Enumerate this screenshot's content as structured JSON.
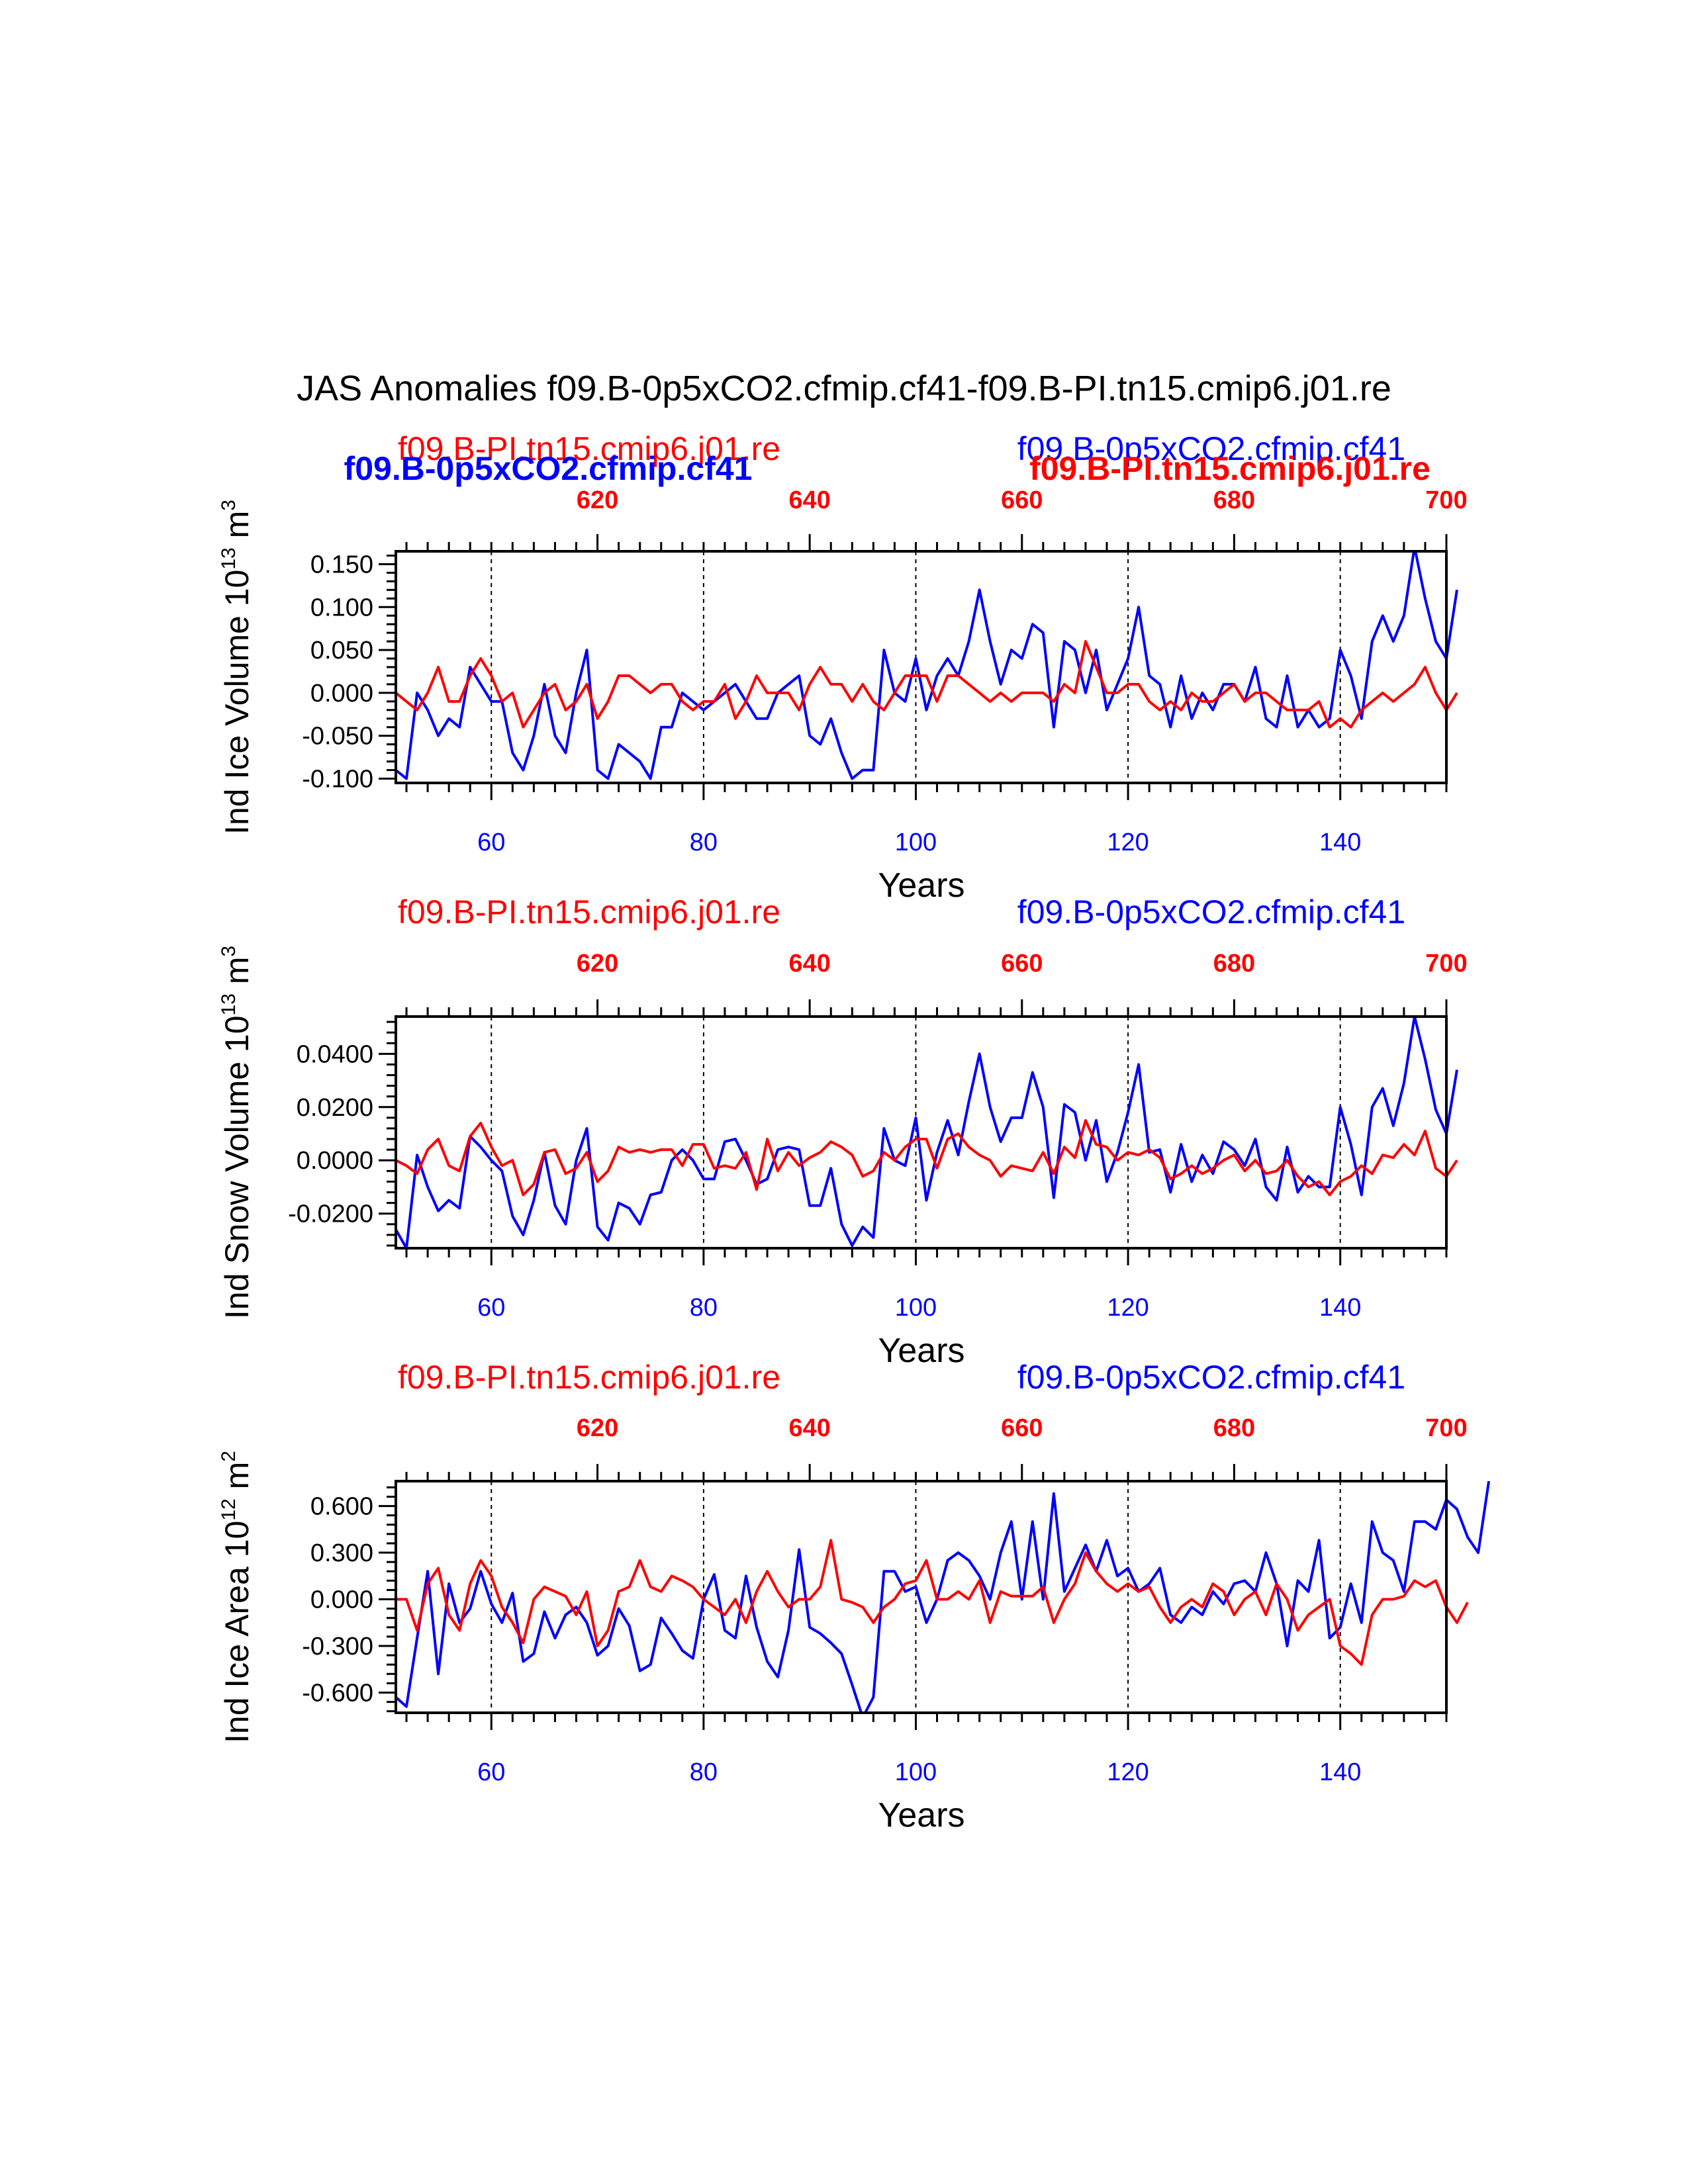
{
  "title": "JAS Anomalies f09.B-0p5xCO2.cfmip.cf41-f09.B-PI.tn15.cmip6.j01.re",
  "top_overlay": {
    "blue_bold": "f09.B-0p5xCO2.cfmip.cf41",
    "red_bold": "f09.B-PI.tn15.cmip6.j01.re"
  },
  "colors": {
    "case1": "#0000ff",
    "case2": "#ff0000",
    "axis": "#000000"
  },
  "chart_data": [
    {
      "type": "line",
      "ylabel": "Ind Ice Volume 10",
      "ylabel_sup": "13",
      "ylabel_unit": " m",
      "ylabel_unit_sup": "3",
      "xlabel": "Years",
      "label_left": "f09.B-PI.tn15.cmip6.j01.re",
      "label_right": "f09.B-0p5xCO2.cfmip.cf41",
      "xlim": [
        51,
        150
      ],
      "top_xlim": [
        601,
        700
      ],
      "ylim": [
        -0.105,
        0.165
      ],
      "yticks": [
        -0.1,
        -0.05,
        0.0,
        0.05,
        0.1,
        0.15
      ],
      "ytick_labels": [
        "-0.100",
        "-0.050",
        "0.000",
        "0.050",
        "0.100",
        "0.150"
      ],
      "xticks": [
        60,
        80,
        100,
        120,
        140
      ],
      "xtick_labels": [
        "60",
        "80",
        "100",
        "120",
        "140"
      ],
      "top_xticks": [
        620,
        640,
        660,
        680,
        700
      ],
      "top_xtick_labels": [
        "620",
        "640",
        "660",
        "680",
        "700"
      ],
      "series": [
        {
          "name": "f09.B-0p5xCO2.cfmip.cf41",
          "color": "#0000ff",
          "values": [
            -0.09,
            -0.1,
            0.0,
            -0.02,
            -0.05,
            -0.03,
            -0.04,
            0.03,
            0.01,
            -0.01,
            -0.01,
            -0.07,
            -0.09,
            -0.05,
            0.01,
            -0.05,
            -0.07,
            0.0,
            0.05,
            -0.09,
            -0.1,
            -0.06,
            -0.07,
            -0.08,
            -0.1,
            -0.04,
            -0.04,
            0.0,
            -0.01,
            -0.02,
            -0.01,
            0.0,
            0.01,
            -0.01,
            -0.03,
            -0.03,
            0.0,
            0.01,
            0.02,
            -0.05,
            -0.06,
            -0.03,
            -0.07,
            -0.1,
            -0.09,
            -0.09,
            0.05,
            0.0,
            -0.01,
            0.04,
            -0.02,
            0.02,
            0.04,
            0.02,
            0.06,
            0.12,
            0.06,
            0.01,
            0.05,
            0.04,
            0.08,
            0.07,
            -0.04,
            0.06,
            0.05,
            0.0,
            0.05,
            -0.02,
            0.01,
            0.04,
            0.1,
            0.02,
            0.01,
            -0.04,
            0.02,
            -0.03,
            0.0,
            -0.02,
            0.01,
            0.01,
            -0.01,
            0.03,
            -0.03,
            -0.04,
            0.02,
            -0.04,
            -0.02,
            -0.04,
            -0.03,
            0.05,
            0.02,
            -0.03,
            0.06,
            0.09,
            0.06,
            0.09,
            0.17,
            0.11,
            0.06,
            0.04,
            0.12
          ]
        },
        {
          "name": "f09.B-PI.tn15.cmip6.j01.re",
          "color": "#ff0000",
          "values": [
            0.0,
            -0.01,
            -0.02,
            0.0,
            0.03,
            -0.01,
            -0.01,
            0.02,
            0.04,
            0.02,
            -0.01,
            0.0,
            -0.04,
            -0.02,
            0.0,
            0.01,
            -0.02,
            -0.01,
            0.01,
            -0.03,
            -0.01,
            0.02,
            0.02,
            0.01,
            0.0,
            0.01,
            0.01,
            -0.01,
            -0.02,
            -0.01,
            -0.01,
            0.01,
            -0.03,
            -0.01,
            0.02,
            0.0,
            0.0,
            0.0,
            -0.02,
            0.01,
            0.03,
            0.01,
            0.01,
            -0.01,
            0.01,
            -0.01,
            -0.02,
            0.0,
            0.02,
            0.02,
            0.02,
            -0.01,
            0.02,
            0.02,
            0.01,
            0.0,
            -0.01,
            0.0,
            -0.01,
            0.0,
            0.0,
            0.0,
            -0.01,
            0.01,
            0.0,
            0.06,
            0.03,
            0.0,
            0.0,
            0.01,
            0.01,
            -0.01,
            -0.02,
            -0.01,
            -0.02,
            0.0,
            -0.01,
            -0.01,
            0.0,
            0.01,
            -0.01,
            0.0,
            0.0,
            -0.01,
            -0.02,
            -0.02,
            -0.02,
            -0.01,
            -0.04,
            -0.03,
            -0.04,
            -0.02,
            -0.01,
            0.0,
            -0.01,
            0.0,
            0.01,
            0.03,
            0.0,
            -0.02,
            0.0
          ]
        }
      ]
    },
    {
      "type": "line",
      "ylabel": "Ind Snow Volume 10",
      "ylabel_sup": "13",
      "ylabel_unit": " m",
      "ylabel_unit_sup": "3",
      "xlabel": "Years",
      "label_left": "f09.B-PI.tn15.cmip6.j01.re",
      "label_right": "f09.B-0p5xCO2.cfmip.cf41",
      "xlim": [
        51,
        150
      ],
      "top_xlim": [
        601,
        700
      ],
      "ylim": [
        -0.033,
        0.054
      ],
      "yticks": [
        -0.02,
        0.0,
        0.02,
        0.04
      ],
      "ytick_labels": [
        "-0.0200",
        "0.0000",
        "0.0200",
        "0.0400"
      ],
      "xticks": [
        60,
        80,
        100,
        120,
        140
      ],
      "xtick_labels": [
        "60",
        "80",
        "100",
        "120",
        "140"
      ],
      "top_xticks": [
        620,
        640,
        660,
        680,
        700
      ],
      "top_xtick_labels": [
        "620",
        "640",
        "660",
        "680",
        "700"
      ],
      "series": [
        {
          "name": "f09.B-0p5xCO2.cfmip.cf41",
          "color": "#0000ff",
          "values": [
            -0.026,
            -0.033,
            0.002,
            -0.01,
            -0.019,
            -0.015,
            -0.018,
            0.009,
            0.005,
            0.0,
            -0.004,
            -0.021,
            -0.028,
            -0.015,
            0.003,
            -0.017,
            -0.024,
            0.0,
            0.012,
            -0.025,
            -0.03,
            -0.016,
            -0.018,
            -0.024,
            -0.013,
            -0.012,
            0.0,
            0.004,
            0.0,
            -0.007,
            -0.007,
            0.007,
            0.008,
            0.0,
            -0.009,
            -0.007,
            0.004,
            0.005,
            0.004,
            -0.017,
            -0.017,
            -0.003,
            -0.024,
            -0.032,
            -0.025,
            -0.029,
            0.012,
            0.0,
            -0.002,
            0.016,
            -0.015,
            0.003,
            0.015,
            0.002,
            0.022,
            0.04,
            0.02,
            0.007,
            0.016,
            0.016,
            0.033,
            0.02,
            -0.014,
            0.021,
            0.018,
            0.0,
            0.015,
            -0.008,
            0.003,
            0.018,
            0.036,
            0.003,
            0.004,
            -0.012,
            0.006,
            -0.008,
            0.002,
            -0.005,
            0.007,
            0.004,
            -0.002,
            0.008,
            -0.01,
            -0.015,
            0.005,
            -0.012,
            -0.006,
            -0.01,
            -0.01,
            0.02,
            0.006,
            -0.013,
            0.02,
            0.027,
            0.013,
            0.029,
            0.054,
            0.038,
            0.019,
            0.01,
            0.034
          ]
        },
        {
          "name": "f09.B-PI.tn15.cmip6.j01.re",
          "color": "#ff0000",
          "values": [
            0.0,
            -0.002,
            -0.005,
            0.004,
            0.008,
            -0.002,
            -0.004,
            0.009,
            0.014,
            0.005,
            -0.002,
            0.0,
            -0.013,
            -0.009,
            0.003,
            0.004,
            -0.005,
            -0.003,
            0.003,
            -0.008,
            -0.004,
            0.005,
            0.003,
            0.004,
            0.003,
            0.004,
            0.004,
            -0.002,
            0.006,
            0.006,
            -0.003,
            -0.002,
            -0.003,
            0.003,
            -0.011,
            0.008,
            -0.004,
            0.003,
            -0.002,
            0.001,
            0.003,
            0.007,
            0.005,
            0.002,
            -0.006,
            -0.004,
            0.003,
            0.0,
            0.005,
            0.008,
            0.008,
            -0.003,
            0.008,
            0.01,
            0.005,
            0.002,
            0.0,
            -0.006,
            -0.002,
            -0.003,
            -0.004,
            0.003,
            -0.005,
            0.005,
            0.001,
            0.015,
            0.006,
            0.005,
            0.0,
            0.003,
            0.002,
            0.004,
            0.001,
            -0.007,
            -0.005,
            -0.002,
            -0.005,
            -0.003,
            0.0,
            0.002,
            -0.004,
            0.0,
            -0.005,
            -0.004,
            0.0,
            -0.006,
            -0.01,
            -0.008,
            -0.013,
            -0.008,
            -0.006,
            -0.002,
            -0.005,
            0.002,
            0.001,
            0.006,
            0.002,
            0.011,
            -0.003,
            -0.006,
            0.0
          ]
        }
      ]
    },
    {
      "type": "line",
      "ylabel": "Ind Ice Area 10",
      "ylabel_sup": "12",
      "ylabel_unit": " m",
      "ylabel_unit_sup": "2",
      "xlabel": "Years",
      "label_left": "f09.B-PI.tn15.cmip6.j01.re",
      "label_right": "f09.B-0p5xCO2.cfmip.cf41",
      "xlim": [
        51,
        150
      ],
      "top_xlim": [
        601,
        700
      ],
      "ylim": [
        -0.73,
        0.76
      ],
      "yticks": [
        -0.6,
        -0.3,
        0.0,
        0.3,
        0.6
      ],
      "ytick_labels": [
        "-0.600",
        "-0.300",
        "0.000",
        "0.300",
        "0.600"
      ],
      "xticks": [
        60,
        80,
        100,
        120,
        140
      ],
      "xtick_labels": [
        "60",
        "80",
        "100",
        "120",
        "140"
      ],
      "top_xticks": [
        620,
        640,
        660,
        680,
        700
      ],
      "top_xtick_labels": [
        "620",
        "640",
        "660",
        "680",
        "700"
      ],
      "series": [
        {
          "name": "f09.B-0p5xCO2.cfmip.cf41",
          "color": "#0000ff",
          "values": [
            -0.63,
            -0.69,
            -0.25,
            0.18,
            -0.48,
            0.1,
            -0.15,
            -0.06,
            0.18,
            -0.03,
            -0.15,
            0.04,
            -0.4,
            -0.35,
            -0.08,
            -0.25,
            -0.1,
            -0.05,
            -0.15,
            -0.36,
            -0.3,
            -0.06,
            -0.17,
            -0.46,
            -0.42,
            -0.12,
            -0.22,
            -0.33,
            -0.38,
            0.0,
            0.16,
            -0.2,
            -0.25,
            0.15,
            -0.18,
            -0.4,
            -0.5,
            -0.2,
            0.32,
            -0.18,
            -0.22,
            -0.28,
            -0.35,
            -0.55,
            -0.76,
            -0.63,
            0.18,
            0.18,
            0.05,
            0.08,
            -0.15,
            0.0,
            0.25,
            0.3,
            0.25,
            0.15,
            0.0,
            0.3,
            0.5,
            0.0,
            0.5,
            0.0,
            0.68,
            0.05,
            0.2,
            0.35,
            0.18,
            0.38,
            0.15,
            0.2,
            0.05,
            0.1,
            0.2,
            -0.1,
            -0.15,
            -0.05,
            -0.1,
            0.05,
            -0.03,
            0.1,
            0.12,
            0.05,
            0.3,
            0.1,
            -0.3,
            0.12,
            0.05,
            0.38,
            -0.25,
            -0.18,
            0.1,
            -0.15,
            0.5,
            0.3,
            0.25,
            0.05,
            0.5,
            0.5,
            0.45,
            0.64,
            0.58,
            0.4,
            0.3,
            0.76
          ]
        },
        {
          "name": "f09.B-PI.tn15.cmip6.j01.re",
          "color": "#ff0000",
          "values": [
            0.0,
            0.0,
            -0.2,
            0.1,
            0.2,
            -0.1,
            -0.2,
            0.1,
            0.25,
            0.15,
            -0.05,
            -0.15,
            -0.28,
            0.0,
            0.08,
            0.05,
            0.02,
            -0.1,
            0.05,
            -0.3,
            -0.2,
            0.05,
            0.08,
            0.25,
            0.08,
            0.05,
            0.15,
            0.12,
            0.08,
            0.0,
            -0.05,
            -0.1,
            0.0,
            -0.15,
            0.05,
            0.18,
            0.05,
            -0.05,
            0.0,
            0.0,
            0.08,
            0.38,
            0.0,
            -0.02,
            -0.05,
            -0.15,
            -0.05,
            0.0,
            0.1,
            0.12,
            0.25,
            0.0,
            0.0,
            0.05,
            0.0,
            0.12,
            -0.15,
            0.05,
            0.02,
            0.02,
            0.02,
            0.08,
            -0.15,
            0.0,
            0.1,
            0.3,
            0.18,
            0.1,
            0.05,
            0.1,
            0.05,
            0.08,
            -0.05,
            -0.15,
            -0.05,
            0.0,
            -0.05,
            0.1,
            0.05,
            -0.1,
            0.0,
            0.05,
            -0.1,
            0.1,
            0.0,
            -0.2,
            -0.1,
            -0.05,
            0.0,
            -0.3,
            -0.35,
            -0.42,
            -0.1,
            0.0,
            0.0,
            0.02,
            0.12,
            0.08,
            0.12,
            -0.05,
            -0.15,
            -0.02
          ]
        }
      ]
    }
  ]
}
